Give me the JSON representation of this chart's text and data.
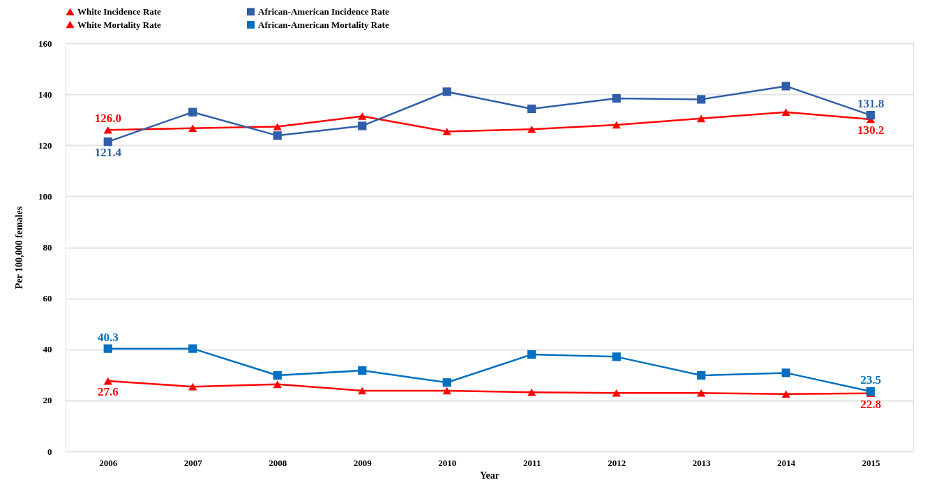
{
  "chart_data": {
    "type": "line",
    "xlabel": "Year",
    "ylabel": "Per 100,000 females",
    "categories": [
      "2006",
      "2007",
      "2008",
      "2009",
      "2010",
      "2011",
      "2012",
      "2013",
      "2014",
      "2015"
    ],
    "series": [
      {
        "name": "White Incidence Rate",
        "color": "#ff0000",
        "marker": "triangle",
        "values": [
          126.0,
          126.7,
          127.3,
          131.4,
          125.4,
          126.3,
          128.0,
          130.5,
          133.0,
          130.2
        ],
        "value_labels": [
          "126.0",
          null,
          null,
          null,
          null,
          null,
          null,
          null,
          null,
          "130.2"
        ]
      },
      {
        "name": "African-American Incidence Rate",
        "color": "#2f5ea8",
        "marker": "square",
        "values": [
          121.4,
          133.0,
          123.8,
          127.6,
          141.0,
          134.3,
          138.4,
          138.0,
          143.2,
          131.8
        ],
        "value_labels": [
          "121.4",
          null,
          null,
          null,
          null,
          null,
          null,
          null,
          null,
          "131.8"
        ]
      },
      {
        "name": "White Mortality Rate",
        "color": "#ff0000",
        "marker": "triangle",
        "values": [
          27.6,
          25.4,
          26.3,
          23.8,
          23.8,
          23.2,
          22.9,
          22.9,
          22.5,
          22.8
        ],
        "value_labels": [
          "27.6",
          null,
          null,
          null,
          null,
          null,
          null,
          null,
          null,
          "22.8"
        ]
      },
      {
        "name": "African-American Mortality Rate",
        "color": "#0070c0",
        "marker": "square",
        "values": [
          40.3,
          40.3,
          29.8,
          31.7,
          27.0,
          38.0,
          37.1,
          29.8,
          30.8,
          23.5
        ],
        "value_labels": [
          "40.3",
          null,
          null,
          null,
          null,
          null,
          null,
          null,
          null,
          "23.5"
        ]
      }
    ],
    "ylim": [
      0,
      160
    ],
    "yticks": [
      0,
      20,
      40,
      60,
      80,
      100,
      120,
      140,
      160
    ],
    "grid": "y",
    "legend": "top",
    "line_style": "solid"
  }
}
